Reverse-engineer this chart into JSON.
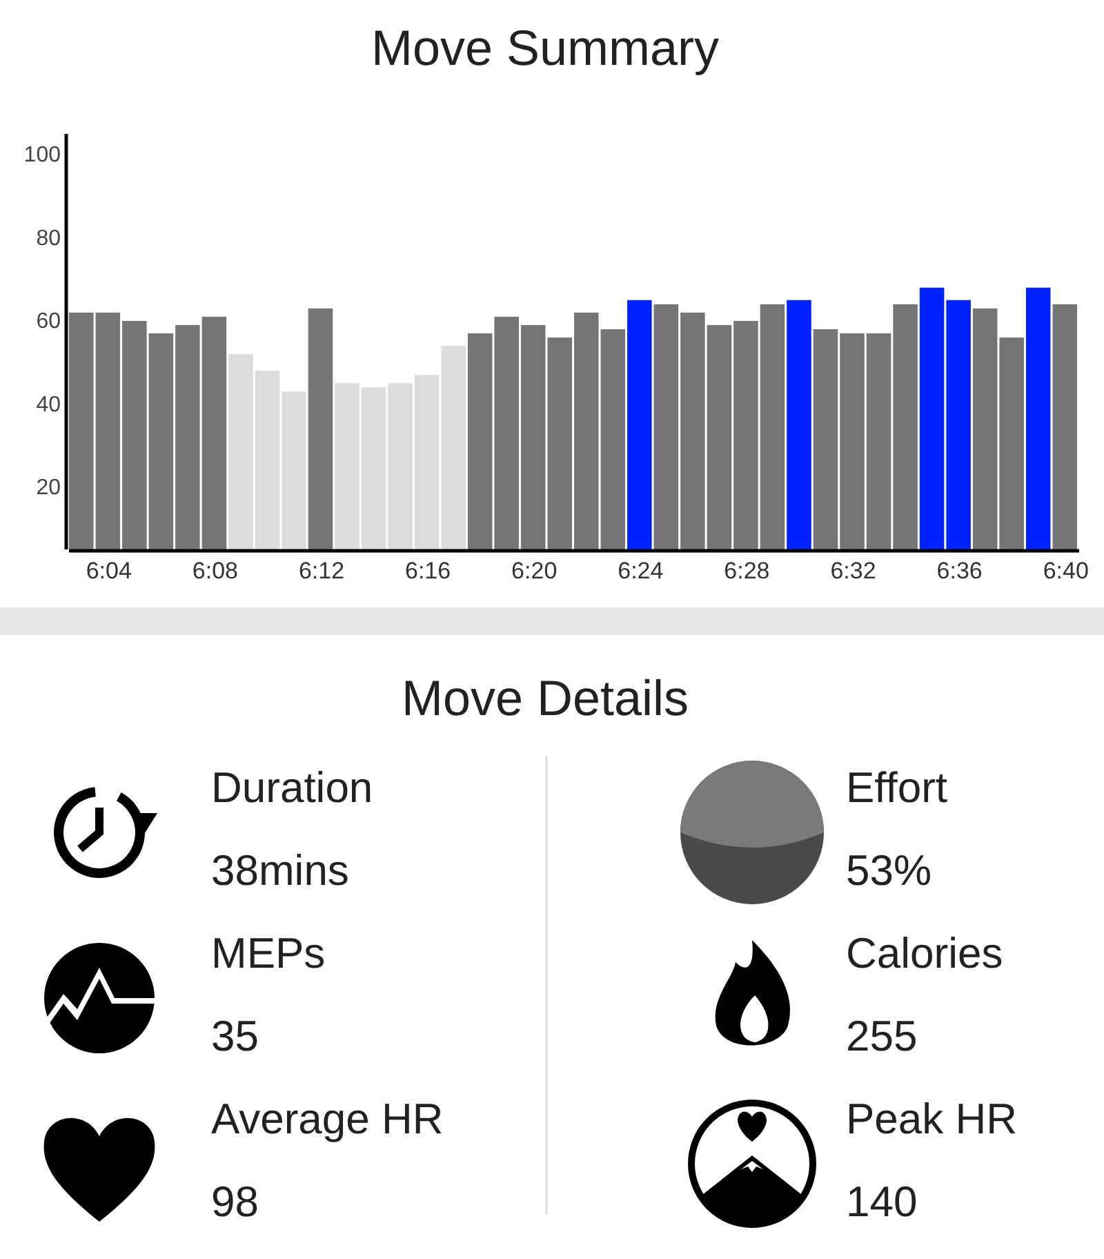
{
  "chart_data": [
    {
      "type": "bar",
      "title": "Move Summary",
      "categories": [
        null,
        "6:04",
        null,
        null,
        null,
        "6:08",
        null,
        null,
        null,
        "6:12",
        null,
        null,
        null,
        "6:16",
        null,
        null,
        null,
        "6:20",
        null,
        null,
        null,
        "6:24",
        null,
        null,
        null,
        "6:28",
        null,
        null,
        null,
        "6:32",
        null,
        null,
        null,
        "6:36",
        null,
        null,
        null,
        "6:40"
      ],
      "values": [
        62,
        62,
        60,
        57,
        59,
        61,
        52,
        48,
        43,
        63,
        45,
        44,
        45,
        47,
        54,
        57,
        61,
        59,
        56,
        62,
        58,
        65,
        64,
        62,
        59,
        60,
        64,
        65,
        58,
        57,
        57,
        64,
        68,
        65,
        63,
        56,
        68,
        64
      ],
      "colors": [
        "#757577",
        "#757577",
        "#757577",
        "#757577",
        "#757577",
        "#757577",
        "#dcdcdc",
        "#dcdcdc",
        "#dcdcdc",
        "#757577",
        "#dcdcdc",
        "#dcdcdc",
        "#dcdcdc",
        "#dcdcdc",
        "#dcdcdc",
        "#757577",
        "#757577",
        "#757577",
        "#757577",
        "#757577",
        "#757577",
        "#0022ff",
        "#757577",
        "#757577",
        "#757577",
        "#757577",
        "#757577",
        "#0022ff",
        "#757577",
        "#757577",
        "#757577",
        "#757577",
        "#0022ff",
        "#0022ff",
        "#757577",
        "#757577",
        "#0022ff",
        "#757577"
      ],
      "ylim": [
        5,
        105
      ],
      "yticks": [
        20,
        40,
        60,
        80,
        100
      ],
      "grid": false
    },
    {
      "type": "other",
      "title": "Move Details",
      "annotations": [
        "Duration",
        "38mins",
        "Effort",
        "53%",
        "MEPs",
        "35",
        "Calories",
        "255",
        "Average HR",
        "98",
        "Peak HR",
        "140"
      ]
    }
  ]
}
